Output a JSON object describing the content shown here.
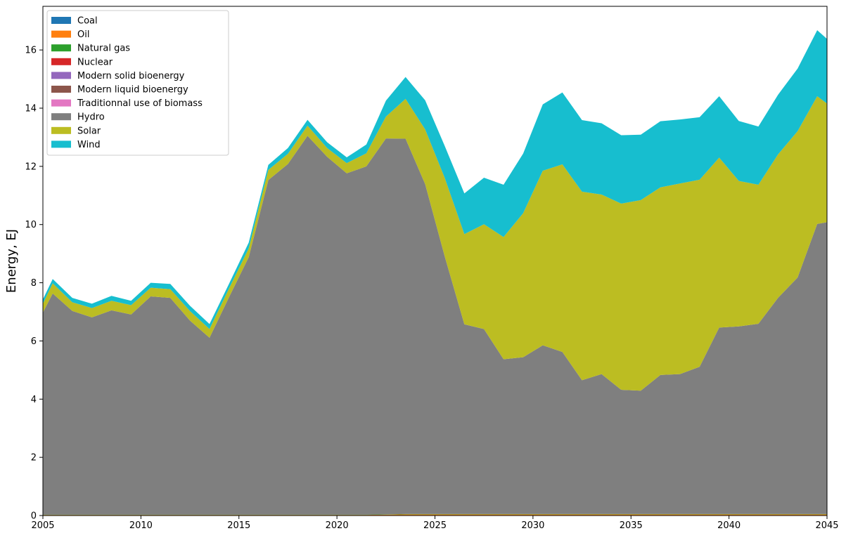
{
  "chart_data": {
    "type": "area",
    "stacked": true,
    "title": "",
    "xlabel": "",
    "ylabel": "Energy, EJ",
    "xlim": [
      2005,
      2045
    ],
    "ylim": [
      0,
      17.5
    ],
    "xticks": [
      2005,
      2010,
      2015,
      2020,
      2025,
      2030,
      2035,
      2040,
      2045
    ],
    "yticks": [
      0,
      2,
      4,
      6,
      8,
      10,
      12,
      14,
      16
    ],
    "grid": false,
    "legend_position": "top-left",
    "x": [
      2005,
      2005.5,
      2006.5,
      2007.5,
      2008.5,
      2009.5,
      2010.5,
      2011.5,
      2012.5,
      2013.5,
      2014.5,
      2015.5,
      2016.5,
      2017.5,
      2018.5,
      2019.5,
      2020.5,
      2021.5,
      2022.5,
      2023.5,
      2024.5,
      2025.5,
      2026.5,
      2027.5,
      2028.5,
      2029.5,
      2030.5,
      2031.5,
      2032.5,
      2033.5,
      2034.5,
      2035.5,
      2036.5,
      2037.5,
      2038.5,
      2039.5,
      2040.5,
      2041.5,
      2042.5,
      2043.5,
      2044.5,
      2045
    ],
    "series": [
      {
        "name": "Coal",
        "color": "#1f77b4",
        "values": [
          0.01,
          0.01,
          0.01,
          0.01,
          0.01,
          0.01,
          0.01,
          0.01,
          0.01,
          0.01,
          0.01,
          0.01,
          0.01,
          0.01,
          0.01,
          0.01,
          0.01,
          0.01,
          0.01,
          0.01,
          0.01,
          0.01,
          0.01,
          0.01,
          0.01,
          0.01,
          0.01,
          0.01,
          0.01,
          0.01,
          0.01,
          0.01,
          0.01,
          0.01,
          0.01,
          0.01,
          0.01,
          0.01,
          0.01,
          0.01,
          0.01,
          0.01
        ]
      },
      {
        "name": "Oil",
        "color": "#ff7f0e",
        "values": [
          0.01,
          0.01,
          0.01,
          0.01,
          0.01,
          0.01,
          0.01,
          0.01,
          0.01,
          0.01,
          0.01,
          0.01,
          0.01,
          0.01,
          0.01,
          0.01,
          0.01,
          0.01,
          0.02,
          0.03,
          0.03,
          0.03,
          0.03,
          0.03,
          0.03,
          0.03,
          0.03,
          0.03,
          0.03,
          0.03,
          0.03,
          0.03,
          0.03,
          0.03,
          0.03,
          0.03,
          0.03,
          0.03,
          0.03,
          0.03,
          0.03,
          0.03
        ]
      },
      {
        "name": "Natural gas",
        "color": "#2ca02c",
        "values": [
          0.01,
          0.01,
          0.01,
          0.01,
          0.01,
          0.01,
          0.01,
          0.01,
          0.01,
          0.01,
          0.01,
          0.01,
          0.01,
          0.01,
          0.01,
          0.01,
          0.01,
          0.01,
          0.01,
          0.01,
          0.01,
          0.01,
          0.01,
          0.01,
          0.01,
          0.01,
          0.01,
          0.01,
          0.01,
          0.01,
          0.01,
          0.01,
          0.01,
          0.01,
          0.01,
          0.01,
          0.01,
          0.01,
          0.01,
          0.01,
          0.01,
          0.01
        ]
      },
      {
        "name": "Nuclear",
        "color": "#d62728",
        "values": [
          0,
          0,
          0,
          0,
          0,
          0,
          0,
          0,
          0,
          0,
          0,
          0,
          0,
          0,
          0,
          0,
          0,
          0,
          0,
          0,
          0,
          0,
          0,
          0,
          0,
          0,
          0,
          0,
          0,
          0,
          0,
          0,
          0,
          0,
          0,
          0,
          0,
          0,
          0,
          0,
          0,
          0
        ]
      },
      {
        "name": "Modern solid bioenergy",
        "color": "#9467bd",
        "values": [
          0,
          0,
          0,
          0,
          0,
          0,
          0,
          0,
          0,
          0,
          0,
          0,
          0,
          0,
          0,
          0,
          0,
          0,
          0,
          0,
          0,
          0,
          0,
          0,
          0,
          0,
          0,
          0,
          0,
          0,
          0,
          0,
          0,
          0,
          0,
          0,
          0,
          0,
          0,
          0,
          0,
          0
        ]
      },
      {
        "name": "Modern liquid bioenergy",
        "color": "#8c564b",
        "values": [
          0,
          0,
          0,
          0,
          0,
          0,
          0,
          0,
          0,
          0,
          0,
          0,
          0,
          0,
          0,
          0,
          0,
          0,
          0,
          0,
          0,
          0,
          0,
          0,
          0,
          0,
          0,
          0,
          0,
          0,
          0,
          0,
          0,
          0,
          0,
          0,
          0,
          0,
          0,
          0,
          0,
          0
        ]
      },
      {
        "name": "Traditionnal use of biomass",
        "color": "#e377c2",
        "values": [
          0,
          0,
          0,
          0,
          0,
          0,
          0,
          0,
          0,
          0,
          0,
          0,
          0,
          0,
          0,
          0,
          0,
          0,
          0,
          0,
          0,
          0,
          0,
          0,
          0,
          0,
          0,
          0,
          0,
          0,
          0,
          0,
          0,
          0,
          0,
          0,
          0,
          0,
          0,
          0,
          0,
          0
        ]
      },
      {
        "name": "Hydro",
        "color": "#7f7f7f",
        "values": [
          6.95,
          7.6,
          7.0,
          6.78,
          7.02,
          6.88,
          7.5,
          7.45,
          6.67,
          6.08,
          7.48,
          8.85,
          11.5,
          12.05,
          13.02,
          12.3,
          11.73,
          11.97,
          12.92,
          12.9,
          11.34,
          8.85,
          6.52,
          6.36,
          5.32,
          5.39,
          5.8,
          5.57,
          4.6,
          4.81,
          4.27,
          4.24,
          4.78,
          4.81,
          5.06,
          6.41,
          6.45,
          6.54,
          7.43,
          8.13,
          9.97,
          10.03
        ]
      },
      {
        "name": "Solar",
        "color": "#bcbd22",
        "values": [
          0.3,
          0.35,
          0.3,
          0.32,
          0.33,
          0.32,
          0.3,
          0.3,
          0.33,
          0.3,
          0.3,
          0.3,
          0.35,
          0.35,
          0.35,
          0.3,
          0.35,
          0.45,
          0.75,
          1.37,
          1.88,
          2.7,
          3.1,
          3.6,
          4.2,
          4.95,
          6.0,
          6.45,
          6.48,
          6.17,
          6.4,
          6.55,
          6.45,
          6.55,
          6.43,
          5.84,
          5.0,
          4.78,
          4.93,
          5.03,
          4.39,
          4.08
        ]
      },
      {
        "name": "Wind",
        "color": "#17becf",
        "values": [
          0.15,
          0.15,
          0.15,
          0.15,
          0.17,
          0.15,
          0.17,
          0.18,
          0.18,
          0.17,
          0.16,
          0.2,
          0.17,
          0.2,
          0.2,
          0.2,
          0.2,
          0.3,
          0.55,
          0.75,
          1.0,
          1.1,
          1.4,
          1.6,
          1.8,
          2.05,
          2.28,
          2.47,
          2.46,
          2.45,
          2.35,
          2.25,
          2.27,
          2.2,
          2.15,
          2.11,
          2.06,
          2.0,
          2.05,
          2.15,
          2.27,
          2.22
        ]
      }
    ]
  }
}
